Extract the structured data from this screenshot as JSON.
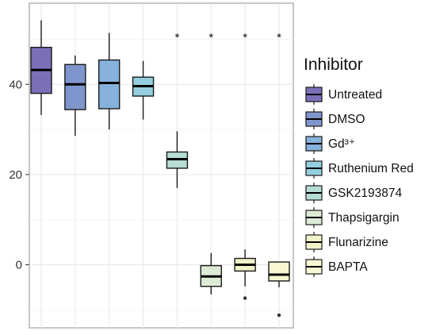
{
  "chart_data": {
    "type": "box",
    "title": "",
    "xlabel": "",
    "ylabel": "",
    "ylim": [
      -14,
      58
    ],
    "yticks": [
      0,
      20,
      40
    ],
    "grid": true,
    "x_tick_labels_shown": false,
    "legend": {
      "title": "Inhibitor",
      "placement": "right"
    },
    "significance_marker": "*",
    "series": [
      {
        "name": "Untreated",
        "color": "#7b6fb8",
        "min": 33.2,
        "q1": 38.0,
        "median": 43.2,
        "q3": 48.2,
        "max": 54.2,
        "outliers": [],
        "significant": false
      },
      {
        "name": "DMSO",
        "color": "#7f96cd",
        "min": 28.6,
        "q1": 34.4,
        "median": 40.0,
        "q3": 44.4,
        "max": 46.4,
        "outliers": [],
        "significant": false
      },
      {
        "name": "Gd³⁺",
        "color": "#86b2dc",
        "min": 30.0,
        "q1": 34.6,
        "median": 40.3,
        "q3": 45.4,
        "max": 51.4,
        "outliers": [],
        "significant": false
      },
      {
        "name": "Ruthenium Red",
        "color": "#95cfdf",
        "min": 32.2,
        "q1": 37.4,
        "median": 39.6,
        "q3": 41.6,
        "max": 45.2,
        "outliers": [],
        "significant": false
      },
      {
        "name": "GSK2193874",
        "color": "#b5ddd4",
        "min": 17.0,
        "q1": 21.4,
        "median": 23.4,
        "q3": 25.0,
        "max": 29.6,
        "outliers": [],
        "significant": true
      },
      {
        "name": "Thapsigargin",
        "color": "#dcebd6",
        "min": -6.6,
        "q1": -4.8,
        "median": -2.6,
        "q3": -0.2,
        "max": 2.6,
        "outliers": [],
        "significant": true
      },
      {
        "name": "Flunarizine",
        "color": "#f0f2c8",
        "min": -4.8,
        "q1": -1.4,
        "median": 0.0,
        "q3": 1.4,
        "max": 3.4,
        "outliers": [
          -7.4
        ],
        "significant": true
      },
      {
        "name": "BAPTA",
        "color": "#f7f7d2",
        "min": -5.0,
        "q1": -3.6,
        "median": -2.2,
        "q3": 0.6,
        "max": 0.6,
        "outliers": [
          -11.2
        ],
        "significant": true
      }
    ]
  }
}
